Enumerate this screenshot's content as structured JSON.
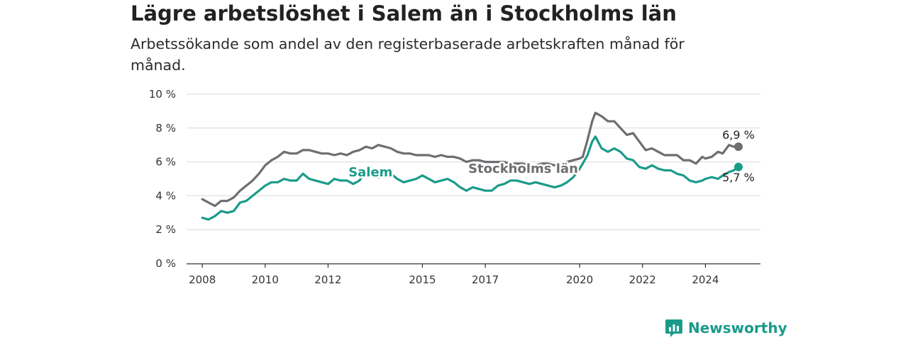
{
  "header": {
    "title": "Lägre arbetslöshet i Salem än i Stockholms län",
    "subtitle": "Arbetssökande som andel av den registerbaserade arbetskraften månad för månad."
  },
  "brand": {
    "name": "Newsworthy",
    "icon": "newsworthy-logo-icon",
    "color": "#1a9b8a"
  },
  "chart_data": {
    "type": "line",
    "title": "Lägre arbetslöshet i Salem än i Stockholms län",
    "subtitle": "Arbetssökande som andel av den registerbaserade arbetskraften månad för månad.",
    "xlabel": "",
    "ylabel": "",
    "xlim": [
      2007.5,
      2025.75
    ],
    "ylim": [
      0,
      10
    ],
    "x_ticks": [
      2008,
      2010,
      2012,
      2015,
      2017,
      2020,
      2022,
      2024
    ],
    "x_tick_labels": [
      "2008",
      "2010",
      "2012",
      "2015",
      "2017",
      "2020",
      "2022",
      "2024"
    ],
    "y_ticks": [
      0,
      2,
      4,
      6,
      8,
      10
    ],
    "y_tick_labels": [
      "0 %",
      "2 %",
      "4 %",
      "6 %",
      "8 %",
      "10 %"
    ],
    "grid": "horizontal",
    "legend": "none",
    "series": [
      {
        "name": "Stockholms län",
        "color": "#6e6e72",
        "end_label": "6,9 %",
        "points": [
          [
            2008.0,
            3.8
          ],
          [
            2008.2,
            3.6
          ],
          [
            2008.4,
            3.4
          ],
          [
            2008.6,
            3.7
          ],
          [
            2008.8,
            3.7
          ],
          [
            2009.0,
            3.9
          ],
          [
            2009.2,
            4.3
          ],
          [
            2009.4,
            4.6
          ],
          [
            2009.6,
            4.9
          ],
          [
            2009.8,
            5.3
          ],
          [
            2010.0,
            5.8
          ],
          [
            2010.2,
            6.1
          ],
          [
            2010.4,
            6.3
          ],
          [
            2010.6,
            6.6
          ],
          [
            2010.8,
            6.5
          ],
          [
            2011.0,
            6.5
          ],
          [
            2011.2,
            6.7
          ],
          [
            2011.4,
            6.7
          ],
          [
            2011.6,
            6.6
          ],
          [
            2011.8,
            6.5
          ],
          [
            2012.0,
            6.5
          ],
          [
            2012.2,
            6.4
          ],
          [
            2012.4,
            6.5
          ],
          [
            2012.6,
            6.4
          ],
          [
            2012.8,
            6.6
          ],
          [
            2013.0,
            6.7
          ],
          [
            2013.2,
            6.9
          ],
          [
            2013.4,
            6.8
          ],
          [
            2013.6,
            7.0
          ],
          [
            2013.8,
            6.9
          ],
          [
            2014.0,
            6.8
          ],
          [
            2014.2,
            6.6
          ],
          [
            2014.4,
            6.5
          ],
          [
            2014.6,
            6.5
          ],
          [
            2014.8,
            6.4
          ],
          [
            2015.0,
            6.4
          ],
          [
            2015.2,
            6.4
          ],
          [
            2015.4,
            6.3
          ],
          [
            2015.6,
            6.4
          ],
          [
            2015.8,
            6.3
          ],
          [
            2016.0,
            6.3
          ],
          [
            2016.2,
            6.2
          ],
          [
            2016.4,
            6.0
          ],
          [
            2016.6,
            6.1
          ],
          [
            2016.8,
            6.1
          ],
          [
            2017.0,
            6.0
          ],
          [
            2017.2,
            6.0
          ],
          [
            2017.4,
            6.0
          ],
          [
            2017.6,
            6.0
          ],
          [
            2017.8,
            5.9
          ],
          [
            2018.0,
            5.9
          ],
          [
            2018.2,
            5.9
          ],
          [
            2018.4,
            5.8
          ],
          [
            2018.6,
            5.8
          ],
          [
            2018.8,
            5.9
          ],
          [
            2019.0,
            5.9
          ],
          [
            2019.2,
            5.8
          ],
          [
            2019.4,
            5.9
          ],
          [
            2019.6,
            6.0
          ],
          [
            2019.8,
            6.1
          ],
          [
            2020.0,
            6.2
          ],
          [
            2020.1,
            6.3
          ],
          [
            2020.25,
            7.3
          ],
          [
            2020.4,
            8.4
          ],
          [
            2020.5,
            8.9
          ],
          [
            2020.7,
            8.7
          ],
          [
            2020.9,
            8.4
          ],
          [
            2021.1,
            8.4
          ],
          [
            2021.3,
            8.0
          ],
          [
            2021.5,
            7.6
          ],
          [
            2021.7,
            7.7
          ],
          [
            2021.9,
            7.2
          ],
          [
            2022.1,
            6.7
          ],
          [
            2022.3,
            6.8
          ],
          [
            2022.5,
            6.6
          ],
          [
            2022.7,
            6.4
          ],
          [
            2022.9,
            6.4
          ],
          [
            2023.1,
            6.4
          ],
          [
            2023.3,
            6.1
          ],
          [
            2023.5,
            6.1
          ],
          [
            2023.7,
            5.9
          ],
          [
            2023.9,
            6.3
          ],
          [
            2024.0,
            6.2
          ],
          [
            2024.2,
            6.3
          ],
          [
            2024.4,
            6.6
          ],
          [
            2024.55,
            6.5
          ],
          [
            2024.75,
            7.0
          ],
          [
            2024.9,
            6.9
          ],
          [
            2025.05,
            6.9
          ]
        ]
      },
      {
        "name": "Salem",
        "color": "#1a9b8a",
        "end_label": "5,7 %",
        "points": [
          [
            2008.0,
            2.7
          ],
          [
            2008.2,
            2.6
          ],
          [
            2008.4,
            2.8
          ],
          [
            2008.6,
            3.1
          ],
          [
            2008.8,
            3.0
          ],
          [
            2009.0,
            3.1
          ],
          [
            2009.2,
            3.6
          ],
          [
            2009.4,
            3.7
          ],
          [
            2009.6,
            4.0
          ],
          [
            2009.8,
            4.3
          ],
          [
            2010.0,
            4.6
          ],
          [
            2010.2,
            4.8
          ],
          [
            2010.4,
            4.8
          ],
          [
            2010.6,
            5.0
          ],
          [
            2010.8,
            4.9
          ],
          [
            2011.0,
            4.9
          ],
          [
            2011.2,
            5.3
          ],
          [
            2011.4,
            5.0
          ],
          [
            2011.6,
            4.9
          ],
          [
            2011.8,
            4.8
          ],
          [
            2012.0,
            4.7
          ],
          [
            2012.2,
            5.0
          ],
          [
            2012.4,
            4.9
          ],
          [
            2012.6,
            4.9
          ],
          [
            2012.8,
            4.7
          ],
          [
            2013.0,
            4.9
          ],
          [
            2013.2,
            5.5
          ],
          [
            2013.4,
            5.3
          ],
          [
            2013.6,
            5.1
          ],
          [
            2013.8,
            5.2
          ],
          [
            2014.0,
            5.3
          ],
          [
            2014.2,
            5.0
          ],
          [
            2014.4,
            4.8
          ],
          [
            2014.6,
            4.9
          ],
          [
            2014.8,
            5.0
          ],
          [
            2015.0,
            5.2
          ],
          [
            2015.2,
            5.0
          ],
          [
            2015.4,
            4.8
          ],
          [
            2015.6,
            4.9
          ],
          [
            2015.8,
            5.0
          ],
          [
            2016.0,
            4.8
          ],
          [
            2016.2,
            4.5
          ],
          [
            2016.4,
            4.3
          ],
          [
            2016.6,
            4.5
          ],
          [
            2016.8,
            4.4
          ],
          [
            2017.0,
            4.3
          ],
          [
            2017.2,
            4.3
          ],
          [
            2017.4,
            4.6
          ],
          [
            2017.6,
            4.7
          ],
          [
            2017.8,
            4.9
          ],
          [
            2018.0,
            4.9
          ],
          [
            2018.2,
            4.8
          ],
          [
            2018.4,
            4.7
          ],
          [
            2018.6,
            4.8
          ],
          [
            2018.8,
            4.7
          ],
          [
            2019.0,
            4.6
          ],
          [
            2019.2,
            4.5
          ],
          [
            2019.4,
            4.6
          ],
          [
            2019.6,
            4.8
          ],
          [
            2019.8,
            5.1
          ],
          [
            2020.0,
            5.6
          ],
          [
            2020.1,
            5.9
          ],
          [
            2020.25,
            6.4
          ],
          [
            2020.4,
            7.2
          ],
          [
            2020.5,
            7.5
          ],
          [
            2020.7,
            6.8
          ],
          [
            2020.9,
            6.6
          ],
          [
            2021.1,
            6.8
          ],
          [
            2021.3,
            6.6
          ],
          [
            2021.5,
            6.2
          ],
          [
            2021.7,
            6.1
          ],
          [
            2021.9,
            5.7
          ],
          [
            2022.1,
            5.6
          ],
          [
            2022.3,
            5.8
          ],
          [
            2022.5,
            5.6
          ],
          [
            2022.7,
            5.5
          ],
          [
            2022.9,
            5.5
          ],
          [
            2023.1,
            5.3
          ],
          [
            2023.3,
            5.2
          ],
          [
            2023.5,
            4.9
          ],
          [
            2023.7,
            4.8
          ],
          [
            2023.9,
            4.9
          ],
          [
            2024.0,
            5.0
          ],
          [
            2024.2,
            5.1
          ],
          [
            2024.4,
            5.0
          ],
          [
            2024.55,
            5.2
          ],
          [
            2024.75,
            5.4
          ],
          [
            2024.9,
            5.5
          ],
          [
            2025.05,
            5.7
          ]
        ]
      }
    ]
  }
}
